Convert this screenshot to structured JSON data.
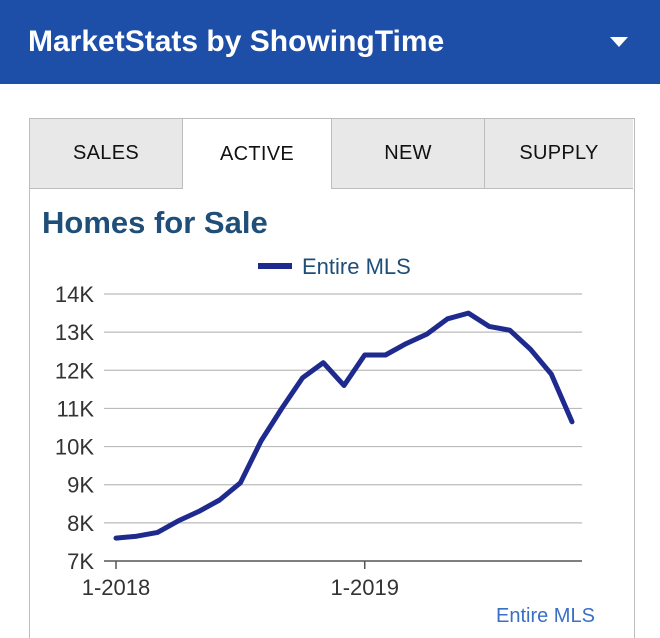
{
  "header": {
    "title": "MarketStats by ShowingTime",
    "menu_icon": "chevron-down-icon"
  },
  "tabs": [
    {
      "label": "SALES",
      "active": false
    },
    {
      "label": "ACTIVE",
      "active": true
    },
    {
      "label": "NEW",
      "active": false
    },
    {
      "label": "SUPPLY",
      "active": false
    }
  ],
  "colors": {
    "header": "#1d4ea8",
    "title": "#1f4e78",
    "series": "#1f2a8e",
    "link": "#3a6fc4"
  },
  "chart_data": {
    "type": "line",
    "title": "Homes for Sale",
    "legend": "top-center",
    "grid": true,
    "ylim": [
      7000,
      14000
    ],
    "yticks": [
      "7K",
      "8K",
      "9K",
      "10K",
      "11K",
      "12K",
      "13K",
      "14K"
    ],
    "xticks": [
      "1-2018",
      "1-2019"
    ],
    "x": [
      "2018-01",
      "2018-02",
      "2018-03",
      "2018-04",
      "2018-05",
      "2018-06",
      "2018-07",
      "2018-08",
      "2018-09",
      "2018-10",
      "2018-11",
      "2018-12",
      "2019-01",
      "2019-02",
      "2019-03",
      "2019-04",
      "2019-05",
      "2019-06",
      "2019-07",
      "2019-08",
      "2019-09",
      "2019-10",
      "2019-11"
    ],
    "series": [
      {
        "name": "Entire MLS",
        "values": [
          7600,
          7650,
          7750,
          8050,
          8300,
          8600,
          9050,
          10150,
          11000,
          11800,
          12200,
          11600,
          12400,
          12400,
          12700,
          12950,
          13350,
          13500,
          13150,
          13050,
          12550,
          11900,
          10650
        ]
      }
    ]
  },
  "footer": {
    "link_label": "Entire MLS"
  }
}
